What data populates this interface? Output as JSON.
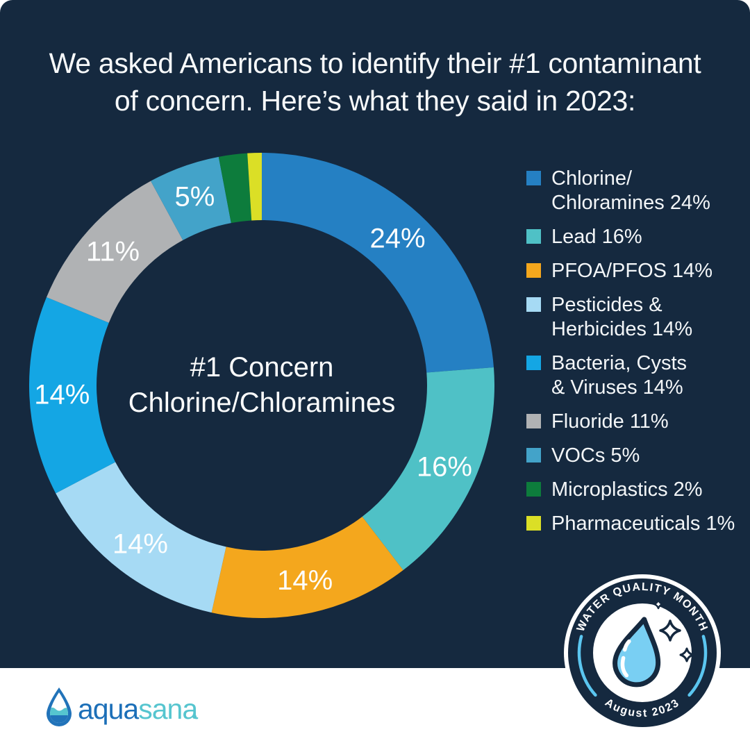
{
  "page": {
    "panel_color": "#15293F",
    "background_color": "#FFFFFF",
    "text_color": "#F8FAFB"
  },
  "title": {
    "line1": "We asked Americans to identify their #1 contaminant",
    "line2": "of concern. Here’s what they said in 2023:"
  },
  "chart_data": {
    "type": "pie",
    "subtype": "donut",
    "direction": "clockwise",
    "start_angle_deg": 0,
    "legend_position": "right",
    "label_format": "percent",
    "label_min_pct": 5,
    "center_label_line1": "#1 Concern",
    "center_label_line2": "Chlorine/Chloramines",
    "slices": [
      {
        "label": "Chlorine/Chloramines",
        "value": 24,
        "color": "#2580C3",
        "legend_lines": [
          "Chlorine/",
          "Chloramines 24%"
        ]
      },
      {
        "label": "Lead",
        "value": 16,
        "color": "#4FC1C6",
        "legend_lines": [
          "Lead 16%"
        ]
      },
      {
        "label": "PFOA/PFOS",
        "value": 14,
        "color": "#F4A71D",
        "legend_lines": [
          "PFOA/PFOS 14%"
        ]
      },
      {
        "label": "Pesticides & Herbicides",
        "value": 14,
        "color": "#A6DAF4",
        "legend_lines": [
          "Pesticides &",
          "Herbicides 14%"
        ]
      },
      {
        "label": "Bacteria, Cysts & Viruses",
        "value": 14,
        "color": "#14A6E4",
        "legend_lines": [
          "Bacteria, Cysts",
          "& Viruses 14%"
        ]
      },
      {
        "label": "Fluoride",
        "value": 11,
        "color": "#B0B2B4",
        "legend_lines": [
          "Fluoride 11%"
        ]
      },
      {
        "label": "VOCs",
        "value": 5,
        "color": "#43A3C9",
        "legend_lines": [
          "VOCs 5%"
        ]
      },
      {
        "label": "Microplastics",
        "value": 2,
        "color": "#0D7C3C",
        "legend_lines": [
          "Microplastics 2%"
        ]
      },
      {
        "label": "Pharmaceuticals",
        "value": 1,
        "color": "#DBDF26",
        "legend_lines": [
          "Pharmaceuticals 1%"
        ]
      }
    ]
  },
  "badge": {
    "top_text": "WATER QUALITY MONTH",
    "bottom_text": "August 2023",
    "ring_color": "#15293F",
    "accent_color": "#5BC6F0",
    "drop_color": "#79CFF3"
  },
  "footer": {
    "brand_part1": "aqua",
    "brand_part2": "sana",
    "brand_part1_color": "#1C6FB8",
    "brand_part2_color": "#56C5CF"
  }
}
